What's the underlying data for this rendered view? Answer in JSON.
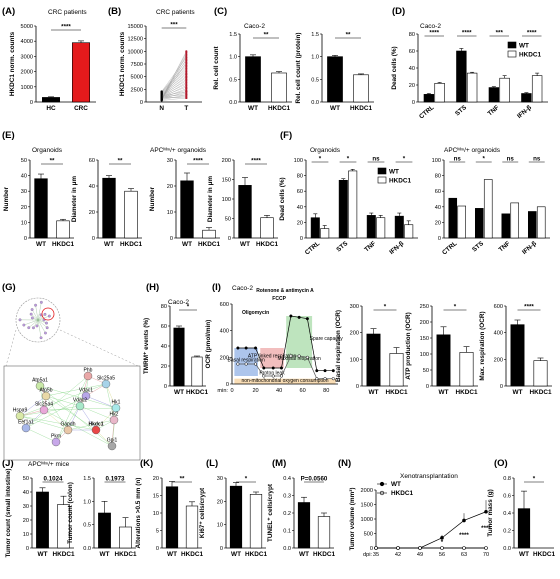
{
  "colors": {
    "black": "#000000",
    "white": "#ffffff",
    "red": "#e41a1c",
    "navy": "#1f2a7a",
    "gray": "#cccccc"
  },
  "panels": [
    {
      "letter": "(A)",
      "subtitle": "CRC patients"
    },
    {
      "letter": "(B)",
      "subtitle": "CRC patients"
    },
    {
      "letter": "(C)",
      "subtitle": "Caco-2"
    },
    {
      "letter": "(D)",
      "subtitle": "Caco-2"
    },
    {
      "letter": "(E)",
      "subtitle": "Organoids",
      "subtitle2": "APCᴹᶦⁿ/+ organoids"
    },
    {
      "letter": "(F)",
      "subtitle": "Organoids",
      "subtitle2": "APCᴹᶦⁿ/+ organoids"
    },
    {
      "letter": "(G)"
    },
    {
      "letter": "(H)",
      "subtitle": "Caco-2"
    },
    {
      "letter": "(I)",
      "subtitle": "Caco-2"
    },
    {
      "letter": "(J)",
      "subtitle": "APCᴹᶦⁿ/+ mice"
    },
    {
      "letter": "(K)"
    },
    {
      "letter": "(L)"
    },
    {
      "letter": "(M)"
    },
    {
      "letter": "(N)",
      "subtitle": "Xenotransplantation"
    },
    {
      "letter": "(O)"
    }
  ],
  "network": {
    "nodes": [
      "Phb",
      "Slc25a5",
      "Atp5a1",
      "Atp5b",
      "Vdac1",
      "Vdac2",
      "Slc25a4",
      "Hspa9",
      "Eef1a1",
      "Gapdh",
      "Hk1",
      "Hk2",
      "Pkm",
      "Hkdc1",
      "Gpi1"
    ]
  },
  "seahorse": {
    "labels": [
      "Rotenone & antimycin A",
      "FCCP",
      "Oligomycin",
      "Basal respiration",
      "ATP linked respiration",
      "Maximal respiration",
      "Spare capacity",
      "Proton leak",
      "non-mitochondrial oxygen consumption"
    ]
  },
  "chart_data": [
    {
      "id": "A",
      "type": "bar",
      "categories": [
        "HC",
        "CRC"
      ],
      "values": [
        300,
        3900
      ],
      "errors": [
        40,
        120
      ],
      "ylabel": "HKDC1 norm. counts",
      "ylim": [
        0,
        5000
      ],
      "yticks": [
        0,
        1000,
        2000,
        3000,
        4000,
        5000
      ],
      "significance": [
        "****"
      ]
    },
    {
      "id": "B",
      "type": "scatter",
      "categories": [
        "N",
        "T"
      ],
      "ylabel": "HKDC1 norm. counts",
      "ylim": [
        0,
        15000
      ],
      "yticks": [
        0,
        2500,
        5000,
        7500,
        10000,
        12500,
        15000
      ],
      "significance": [
        "***"
      ]
    },
    {
      "id": "C1",
      "type": "bar",
      "categories": [
        "WT",
        "HKDC1"
      ],
      "values": [
        1.0,
        0.64
      ],
      "errors": [
        0.04,
        0.03
      ],
      "ylabel": "Rel. cell count",
      "ylim": [
        0,
        1.5
      ],
      "yticks": [
        0.0,
        0.5,
        1.0,
        1.5
      ],
      "significance": [
        "**"
      ]
    },
    {
      "id": "C2",
      "type": "bar",
      "categories": [
        "WT",
        "HKDC1"
      ],
      "values": [
        1.0,
        0.6
      ],
      "errors": [
        0.03,
        0.02
      ],
      "ylabel": "Rel. cell count (protein)",
      "ylim": [
        0,
        1.5
      ],
      "yticks": [
        0.0,
        0.5,
        1.0,
        1.5
      ],
      "significance": [
        "**"
      ]
    },
    {
      "id": "D",
      "type": "bar",
      "categories": [
        "CTRL",
        "STS",
        "TNF",
        "IFN-β"
      ],
      "series": [
        {
          "name": "WT",
          "values": [
            9,
            60,
            17,
            10
          ],
          "errors": [
            1,
            3,
            1,
            1
          ]
        },
        {
          "name": "HKDC1",
          "values": [
            22,
            34,
            28,
            31
          ],
          "errors": [
            1,
            1,
            3,
            3
          ]
        }
      ],
      "ylabel": "Dead cells (%)",
      "ylim": [
        0,
        80
      ],
      "yticks": [
        0,
        20,
        40,
        60,
        80
      ],
      "significance": [
        "****",
        "****",
        "***",
        "****"
      ],
      "legend": "top-right"
    },
    {
      "id": "E1",
      "type": "bar",
      "categories": [
        "WT",
        "HKDC1"
      ],
      "values": [
        38,
        11
      ],
      "errors": [
        3,
        1
      ],
      "ylabel": "Number",
      "ylim": [
        0,
        50
      ],
      "yticks": [
        0,
        10,
        20,
        30,
        40,
        50
      ],
      "significance": [
        "**"
      ]
    },
    {
      "id": "E2",
      "type": "bar",
      "categories": [
        "WT",
        "HKDC1"
      ],
      "values": [
        46,
        36
      ],
      "errors": [
        2,
        2
      ],
      "ylabel": "Diameter in μm",
      "ylim": [
        0,
        60
      ],
      "yticks": [
        0,
        20,
        40,
        60
      ],
      "significance": [
        "**"
      ]
    },
    {
      "id": "E3",
      "type": "bar",
      "categories": [
        "WT",
        "HKDC1"
      ],
      "values": [
        22,
        3
      ],
      "errors": [
        3,
        1
      ],
      "ylabel": "Number",
      "ylim": [
        0,
        30
      ],
      "yticks": [
        0,
        10,
        20,
        30
      ],
      "significance": [
        "****"
      ]
    },
    {
      "id": "E4",
      "type": "bar",
      "categories": [
        "WT",
        "HKDC1"
      ],
      "values": [
        135,
        52
      ],
      "errors": [
        20,
        6
      ],
      "ylabel": "Diameter in μm",
      "ylim": [
        0,
        200
      ],
      "yticks": [
        0,
        50,
        100,
        150,
        200
      ],
      "significance": [
        "****"
      ]
    },
    {
      "id": "F1",
      "type": "bar",
      "categories": [
        "CTRL",
        "STS",
        "TNF",
        "IFN-β"
      ],
      "series": [
        {
          "name": "WT",
          "values": [
            26,
            74,
            29,
            28
          ],
          "errors": [
            5,
            2,
            3,
            4
          ]
        },
        {
          "name": "HKDC1",
          "values": [
            12,
            86,
            26,
            17
          ],
          "errors": [
            4,
            2,
            3,
            5
          ]
        }
      ],
      "ylabel": "Dead cells (%)",
      "ylim": [
        0,
        100
      ],
      "yticks": [
        0,
        20,
        40,
        60,
        80,
        100
      ],
      "significance": [
        "*",
        "*",
        "ns",
        "*"
      ],
      "legend": "top-right"
    },
    {
      "id": "F2",
      "type": "bar",
      "categories": [
        "CTRL",
        "STS",
        "TNF",
        "IFN-β"
      ],
      "series": [
        {
          "name": "WT",
          "values": [
            51,
            38,
            31,
            34
          ]
        },
        {
          "name": "HKDC1",
          "values": [
            41,
            75,
            45,
            40
          ]
        }
      ],
      "ylim": [
        0,
        100
      ],
      "yticks": [
        0,
        20,
        40,
        60,
        80,
        100
      ],
      "significance": [
        "ns",
        "*",
        "ns",
        "ns"
      ]
    },
    {
      "id": "H",
      "type": "bar",
      "categories": [
        "WT",
        "HKDC1"
      ],
      "values": [
        58,
        29
      ],
      "errors": [
        2,
        1
      ],
      "ylabel": "TMRM⁺ events (%)",
      "ylim": [
        0,
        80
      ],
      "yticks": [
        0,
        20,
        40,
        60,
        80
      ],
      "significance": [
        "*"
      ]
    },
    {
      "id": "I1",
      "type": "line",
      "x": [
        0,
        20,
        40,
        60,
        80
      ],
      "ylabel": "OCR (pmol/min)",
      "xlabel_prefix": "min:",
      "ylim": [
        0,
        600
      ],
      "yticks": [
        0,
        200,
        400,
        600
      ],
      "series": [
        {
          "name": "WT",
          "points": [
            [
              5,
              270
            ],
            [
              12,
              270
            ],
            [
              20,
              270
            ],
            [
              27,
              120
            ],
            [
              35,
              120
            ],
            [
              42,
              120
            ],
            [
              50,
              510
            ],
            [
              57,
              500
            ],
            [
              64,
              490
            ],
            [
              72,
              100
            ],
            [
              79,
              100
            ],
            [
              86,
              100
            ]
          ]
        },
        {
          "name": "HKDC1",
          "points": [
            [
              5,
              150
            ],
            [
              12,
              150
            ],
            [
              20,
              150
            ],
            [
              27,
              60
            ],
            [
              35,
              60
            ],
            [
              42,
              60
            ],
            [
              50,
              210
            ],
            [
              57,
              210
            ],
            [
              64,
              200
            ],
            [
              72,
              40
            ],
            [
              79,
              40
            ],
            [
              86,
              40
            ]
          ]
        }
      ]
    },
    {
      "id": "I2",
      "type": "bar",
      "categories": [
        "WT",
        "HKDC1"
      ],
      "values": [
        195,
        122
      ],
      "errors": [
        20,
        22
      ],
      "ylabel": "Basal respiration (OCR)",
      "ylim": [
        0,
        300
      ],
      "yticks": [
        0,
        100,
        200,
        300
      ],
      "significance": [
        "*"
      ]
    },
    {
      "id": "I3",
      "type": "bar",
      "categories": [
        "WT",
        "HKDC1"
      ],
      "values": [
        160,
        105
      ],
      "errors": [
        25,
        18
      ],
      "ylabel": "ATP production (OCR)",
      "ylim": [
        0,
        250
      ],
      "yticks": [
        0,
        50,
        100,
        150,
        200,
        250
      ],
      "significance": [
        "*"
      ]
    },
    {
      "id": "I4",
      "type": "bar",
      "categories": [
        "WT",
        "HKDC1"
      ],
      "values": [
        460,
        190
      ],
      "errors": [
        35,
        20
      ],
      "ylabel": "Max. respiration (OCR)",
      "ylim": [
        0,
        600
      ],
      "yticks": [
        0,
        200,
        400,
        600
      ],
      "significance": [
        "****"
      ]
    },
    {
      "id": "J1",
      "type": "bar",
      "categories": [
        "WT",
        "HKDC1"
      ],
      "values": [
        40,
        31
      ],
      "errors": [
        3,
        6
      ],
      "ylabel": "Tumor count (small intestine)",
      "ylim": [
        0,
        50
      ],
      "yticks": [
        0,
        10,
        20,
        30,
        40,
        50
      ],
      "significance": [
        "0.1024"
      ]
    },
    {
      "id": "J2",
      "type": "bar",
      "categories": [
        "WT",
        "HKDC1"
      ],
      "values": [
        0.75,
        0.45
      ],
      "errors": [
        0.25,
        0.2
      ],
      "ylabel": "Tumor count (colon)",
      "ylim": [
        0,
        1.5
      ],
      "yticks": [
        0.0,
        0.5,
        1.0,
        1.5
      ],
      "significance": [
        "0.1973"
      ]
    },
    {
      "id": "K",
      "type": "bar",
      "categories": [
        "WT",
        "HKDC1"
      ],
      "values": [
        17.5,
        12
      ],
      "errors": [
        1.5,
        1.2
      ],
      "ylabel": "Alterations >0.5 mm (n)",
      "ylim": [
        0,
        20
      ],
      "yticks": [
        0,
        5,
        10,
        15,
        20
      ],
      "significance": [
        "**"
      ]
    },
    {
      "id": "L",
      "type": "bar",
      "categories": [
        "WT",
        "HKDC1"
      ],
      "values": [
        26.5,
        23
      ],
      "errors": [
        1.5,
        1
      ],
      "ylabel": "Ki67⁺ cells/crypt",
      "ylim": [
        0,
        30
      ],
      "yticks": [
        0,
        10,
        20,
        30
      ],
      "significance": [
        "*"
      ]
    },
    {
      "id": "M",
      "type": "bar",
      "categories": [
        "WT",
        "HKDC1"
      ],
      "values": [
        0.26,
        0.18
      ],
      "errors": [
        0.03,
        0.02
      ],
      "ylabel": "TUNEL⁺ cells/crypt",
      "ylim": [
        0,
        0.4
      ],
      "yticks": [
        0.0,
        0.1,
        0.2,
        0.3,
        0.4
      ],
      "significance": [
        "P=0.0560"
      ]
    },
    {
      "id": "N",
      "type": "line",
      "x": [
        35,
        42,
        49,
        56,
        63,
        70
      ],
      "xlabel_prefix": "dpi:",
      "ylabel": "Tumor volume (mm³)",
      "ylim": [
        0,
        2000
      ],
      "yticks": [
        0,
        500,
        1000,
        1500,
        2000
      ],
      "series": [
        {
          "name": "WT",
          "values": [
            0,
            0,
            0,
            350,
            950,
            1250
          ],
          "errors": [
            0,
            0,
            0,
            100,
            250,
            400
          ]
        },
        {
          "name": "HKDC1",
          "values": [
            0,
            0,
            0,
            0,
            0,
            0
          ]
        }
      ],
      "legend": "top-left",
      "significance": [
        "*",
        "****",
        "****"
      ]
    },
    {
      "id": "O",
      "type": "bar",
      "categories": [
        "WT",
        "HKDC1"
      ],
      "values": [
        0.45,
        0.0
      ],
      "errors": [
        0.2,
        0
      ],
      "ylabel": "Tumor mass (g)",
      "ylim": [
        0,
        0.8
      ],
      "yticks": [
        0.0,
        0.2,
        0.4,
        0.6,
        0.8
      ],
      "significance": [
        "*"
      ]
    }
  ]
}
